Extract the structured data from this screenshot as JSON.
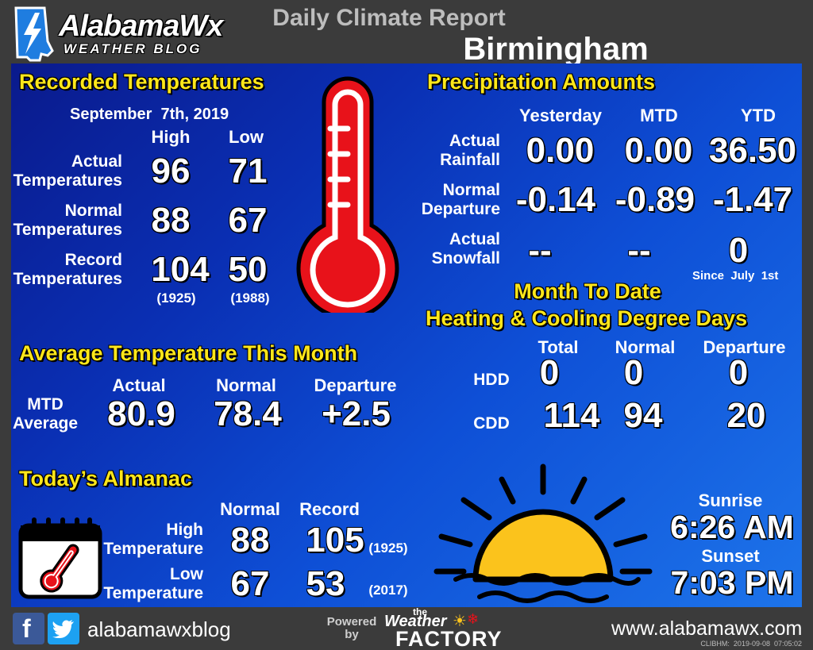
{
  "header": {
    "logo_name": "AlabamaWx",
    "logo_sub": "WEATHER BLOG",
    "report_title": "Daily Climate Report",
    "city": "Birmingham"
  },
  "recorded": {
    "title": "Recorded Temperatures",
    "date": "September  7th, 2019",
    "col_high": "High",
    "col_low": "Low",
    "rows": [
      {
        "label1": "Actual",
        "label2": "Temperatures",
        "high": "96",
        "low": "71"
      },
      {
        "label1": "Normal",
        "label2": "Temperatures",
        "high": "88",
        "low": "67"
      },
      {
        "label1": "Record",
        "label2": "Temperatures",
        "high": "104",
        "low": "50",
        "high_year": "(1925)",
        "low_year": "(1988)"
      }
    ]
  },
  "average": {
    "title": "Average Temperature This Month",
    "label1": "MTD",
    "label2": "Average",
    "col_actual": "Actual",
    "col_normal": "Normal",
    "col_departure": "Departure",
    "actual": "80.9",
    "normal": "78.4",
    "departure": "+2.5"
  },
  "almanac": {
    "title": "Today’s Almanac",
    "col_normal": "Normal",
    "col_record": "Record",
    "high_label1": "High",
    "high_label2": "Temperature",
    "low_label1": "Low",
    "low_label2": "Temperature",
    "high_normal": "88",
    "high_record": "105",
    "high_record_year": "(1925)",
    "low_normal": "67",
    "low_record": "53",
    "low_record_year": "(2017)"
  },
  "precip": {
    "title": "Precipitation Amounts",
    "col_yesterday": "Yesterday",
    "col_mtd": "MTD",
    "col_ytd": "YTD",
    "rows": [
      {
        "label1": "Actual",
        "label2": "Rainfall",
        "yesterday": "0.00",
        "mtd": "0.00",
        "ytd": "36.50"
      },
      {
        "label1": "Normal",
        "label2": "Departure",
        "yesterday": "-0.14",
        "mtd": "-0.89",
        "ytd": "-1.47"
      },
      {
        "label1": "Actual",
        "label2": "Snowfall",
        "yesterday": "--",
        "mtd": "--",
        "ytd": "0"
      }
    ],
    "since_note": "Since  July  1st"
  },
  "degree_days": {
    "title1": "Month To Date",
    "title2": "Heating & Cooling Degree Days",
    "col_total": "Total",
    "col_normal": "Normal",
    "col_departure": "Departure",
    "hdd_label": "HDD",
    "cdd_label": "CDD",
    "hdd_total": "0",
    "hdd_normal": "0",
    "hdd_departure": "0",
    "cdd_total": "114",
    "cdd_normal": "94",
    "cdd_departure": "20"
  },
  "sun": {
    "sunrise_label": "Sunrise",
    "sunrise": "6:26 AM",
    "sunset_label": "Sunset",
    "sunset": "7:03 PM"
  },
  "footer": {
    "social_handle": "alabamawxblog",
    "powered": "Powered",
    "by": "by",
    "twf_the": "the",
    "twf_weather": "Weather",
    "twf_factory": "FACTORY",
    "website": "www.alabamawx.com",
    "stamp": "CLIBHM:  2019-09-08  07:05:02"
  },
  "colors": {
    "accent_yellow": "#ffe71a",
    "thermometer_red": "#e8121a",
    "sun_yellow": "#fbc31c",
    "facebook_blue": "#3b5998",
    "twitter_blue": "#1da1f2"
  },
  "icons": [
    "alabama-lightning-logo-icon",
    "thermometer-icon",
    "calendar-thermometer-icon",
    "sun-setting-icon",
    "facebook-icon",
    "twitter-icon",
    "weather-factory-logo-icon"
  ]
}
